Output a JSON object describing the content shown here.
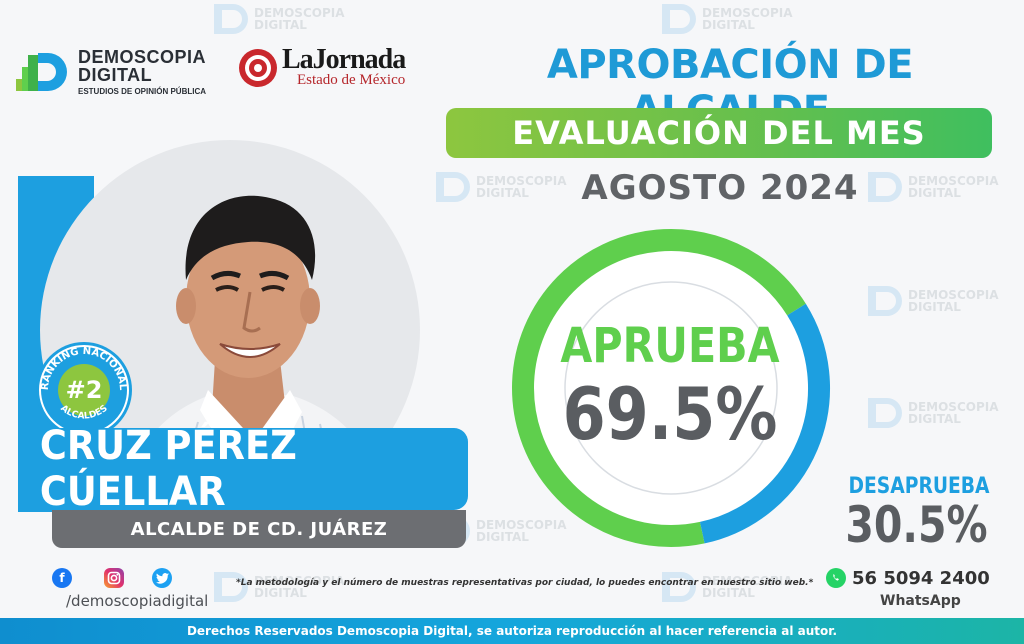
{
  "brand": {
    "name_line1": "DEMOSCOPIA",
    "name_line2": "DIGITAL",
    "tagline": "ESTUDIOS DE OPINIÓN PÚBLICA",
    "accent_blue": "#1d9fe0",
    "accent_green": "#5fcf4d"
  },
  "partner": {
    "name": "LaJornada",
    "subtitle": "Estado de México"
  },
  "watermark": {
    "line1": "DEMOSCOPIA",
    "line2": "DIGITAL"
  },
  "header": {
    "title": "APROBACIÓN DE ALCALDE",
    "banner": "EVALUACIÓN DEL MES",
    "period": "AGOSTO 2024"
  },
  "profile": {
    "name": "CRUZ PÉREZ CÚELLAR",
    "role": "ALCALDE DE CD. JUÁREZ",
    "ranking_top": "RANKING NACIONAL",
    "ranking_value": "#2",
    "ranking_bottom": "ALCALDES"
  },
  "chart_data": {
    "type": "pie",
    "categories": [
      "APRUEBA",
      "DESAPRUEBA"
    ],
    "values": [
      69.5,
      30.5
    ],
    "colors": [
      "#5fcf4d",
      "#1d9fe0"
    ],
    "labels": [
      "69.5%",
      "30.5%"
    ]
  },
  "results": {
    "approve_label": "APRUEBA",
    "approve_value": "69.5%",
    "disapprove_label": "DESAPRUEBA",
    "disapprove_value": "30.5%"
  },
  "footer": {
    "social_handle": "/demoscopiadigital",
    "methodology_note": "*La metodología y el número de muestras representativas por ciudad, lo puedes encontrar en nuestro sitio web.*",
    "phone": "56 5094 2400",
    "whatsapp_label": "WhatsApp",
    "rights": "Derechos Reservados Demoscopia Digital, se autoriza reproducción al hacer referencia al autor.",
    "icons": [
      "facebook-icon",
      "instagram-icon",
      "twitter-icon",
      "whatsapp-icon"
    ]
  }
}
